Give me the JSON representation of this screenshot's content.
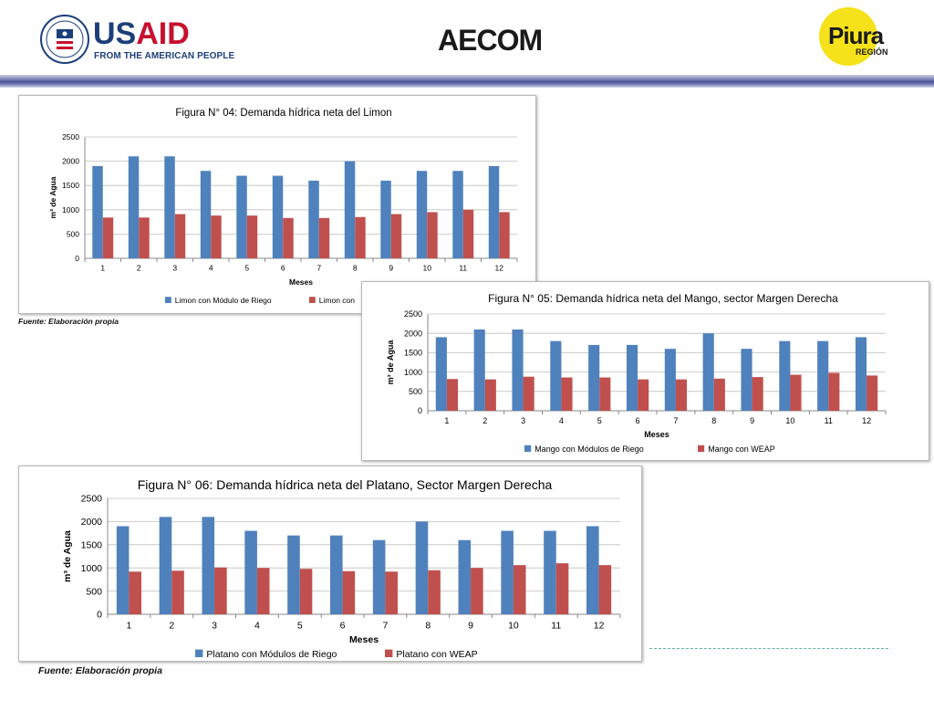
{
  "header": {
    "usaid_wordmark_a": "US",
    "usaid_wordmark_b": "AID",
    "usaid_tagline": "FROM THE AMERICAN PEOPLE",
    "aecom": "AECOM",
    "piura": "Piura",
    "piura_sub": "REGIÓN"
  },
  "colors": {
    "series_blue": "#4f81bd",
    "series_red": "#c0504d",
    "gridline": "#bfbfbf",
    "divider_bar": "#4a5296"
  },
  "sources": {
    "chart1": "Fuente: Elaboración  propia",
    "chart3": "Fuente: Elaboración  propia"
  },
  "chart_data": [
    {
      "type": "bar",
      "title": "Figura N° 04: Demanda hídrica neta del Limon",
      "xlabel": "Meses",
      "ylabel": "m³ de Agua",
      "categories": [
        "1",
        "2",
        "3",
        "4",
        "5",
        "6",
        "7",
        "8",
        "9",
        "10",
        "11",
        "12"
      ],
      "ylim": [
        0,
        2500
      ],
      "yticks": [
        0,
        500,
        1000,
        1500,
        2000,
        2500
      ],
      "grid": true,
      "legend": "bottom",
      "series": [
        {
          "name": "Limon con Módulo de Riego",
          "color": "#4f81bd",
          "values": [
            1900,
            2100,
            2100,
            1800,
            1700,
            1700,
            1600,
            2000,
            1600,
            1800,
            1800,
            1900
          ]
        },
        {
          "name": "Limon con",
          "color": "#c0504d",
          "values": [
            840,
            840,
            910,
            880,
            880,
            830,
            830,
            850,
            910,
            950,
            1000,
            950
          ]
        }
      ]
    },
    {
      "type": "bar",
      "title": "Figura N° 05: Demanda hídrica neta  del Mango, sector Margen Derecha",
      "xlabel": "Meses",
      "ylabel": "m³ de Agua",
      "categories": [
        "1",
        "2",
        "3",
        "4",
        "5",
        "6",
        "7",
        "8",
        "9",
        "10",
        "11",
        "12"
      ],
      "ylim": [
        0,
        2500
      ],
      "yticks": [
        0,
        500,
        1000,
        1500,
        2000,
        2500
      ],
      "grid": true,
      "legend": "bottom",
      "series": [
        {
          "name": "Mango con Módulos de Riego",
          "color": "#4f81bd",
          "values": [
            1900,
            2100,
            2100,
            1800,
            1700,
            1700,
            1600,
            2000,
            1600,
            1800,
            1800,
            1900
          ]
        },
        {
          "name": "Mango con WEAP",
          "color": "#c0504d",
          "values": [
            820,
            810,
            880,
            860,
            860,
            810,
            810,
            830,
            870,
            930,
            980,
            910
          ]
        }
      ]
    },
    {
      "type": "bar",
      "title": "Figura N° 06: Demanda hídrica neta del Platano, Sector Margen Derecha",
      "xlabel": "Meses",
      "ylabel": "m³ de Agua",
      "categories": [
        "1",
        "2",
        "3",
        "4",
        "5",
        "6",
        "7",
        "8",
        "9",
        "10",
        "11",
        "12"
      ],
      "ylim": [
        0,
        2500
      ],
      "yticks": [
        0,
        500,
        1000,
        1500,
        2000,
        2500
      ],
      "grid": true,
      "legend": "bottom",
      "series": [
        {
          "name": "Platano con Módulos de Riego",
          "color": "#4f81bd",
          "values": [
            1900,
            2100,
            2100,
            1800,
            1700,
            1700,
            1600,
            2000,
            1600,
            1800,
            1800,
            1900
          ]
        },
        {
          "name": "Platano con WEAP",
          "color": "#c0504d",
          "values": [
            920,
            940,
            1010,
            1000,
            980,
            930,
            920,
            950,
            1000,
            1060,
            1100,
            1060
          ]
        }
      ]
    }
  ]
}
